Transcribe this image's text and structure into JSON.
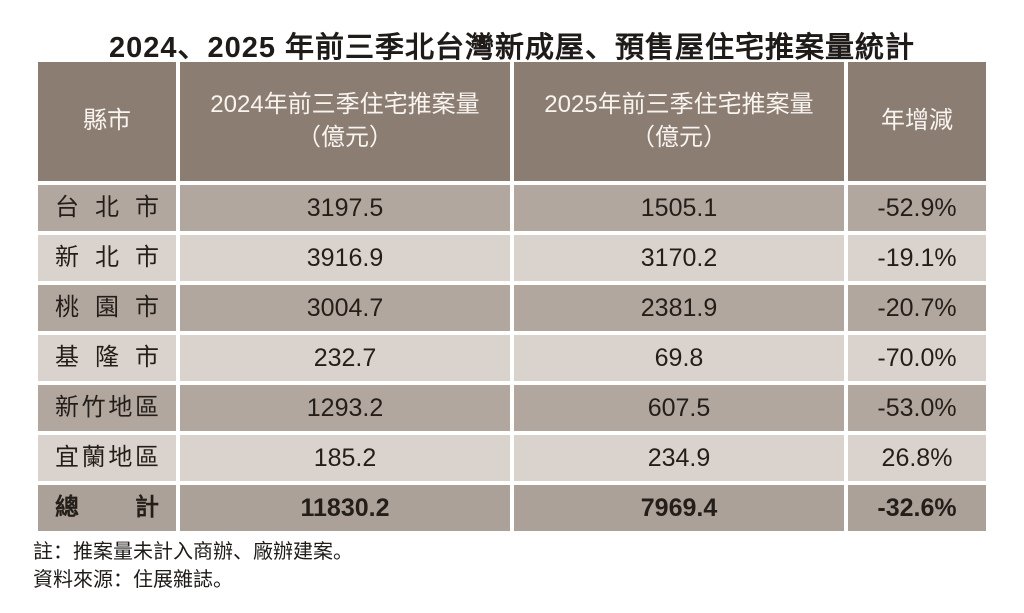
{
  "title": "2024、2025 年前三季北台灣新成屋、預售屋住宅推案量統計",
  "chart_data": {
    "type": "table",
    "title": "2024、2025 年前三季北台灣新成屋、預售屋住宅推案量統計",
    "unit": "億元",
    "columns": {
      "region": "縣市",
      "y2024": "2024年前三季住宅推案量\n（億元）",
      "y2025": "2025年前三季住宅推案量\n（億元）",
      "yoy": "年增減"
    },
    "rows": [
      {
        "region": "台北市",
        "y2024": "3197.5",
        "y2025": "1505.1",
        "yoy": "-52.9%"
      },
      {
        "region": "新北市",
        "y2024": "3916.9",
        "y2025": "3170.2",
        "yoy": "-19.1%"
      },
      {
        "region": "桃園市",
        "y2024": "3004.7",
        "y2025": "2381.9",
        "yoy": "-20.7%"
      },
      {
        "region": "基隆市",
        "y2024": "232.7",
        "y2025": "69.8",
        "yoy": "-70.0%"
      },
      {
        "region": "新竹地區",
        "y2024": "1293.2",
        "y2025": "607.5",
        "yoy": "-53.0%"
      },
      {
        "region": "宜蘭地區",
        "y2024": "185.2",
        "y2025": "234.9",
        "yoy": "26.8%"
      }
    ],
    "total_row": {
      "region": "總計",
      "y2024": "11830.2",
      "y2025": "7969.4",
      "yoy": "-32.6%"
    }
  },
  "notes": {
    "line1": "註：推案量未計入商辦、廠辦建案。",
    "line2": "資料來源：住展雜誌。"
  },
  "colors": {
    "header_bg": "#8c7d73",
    "row_odd_bg": "#b2a79f",
    "row_even_bg": "#dad3cd",
    "total_row_bg": "#aca198",
    "header_text": "#f8f4ef",
    "body_text": "#241e1a",
    "page_bg": "#ffffff"
  }
}
